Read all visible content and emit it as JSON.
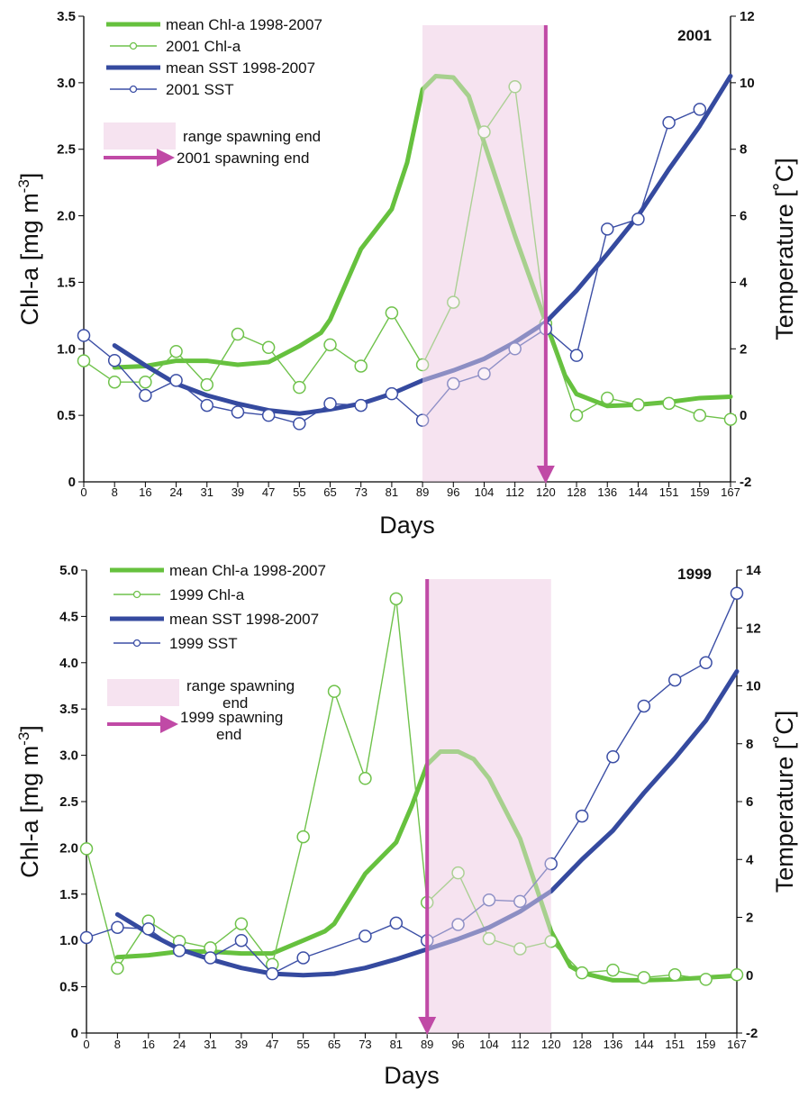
{
  "colors": {
    "green": "#66c13e",
    "green_marker": "#6fc24b",
    "blue": "#354a9f",
    "blue_marker": "#3b4ea5",
    "magenta": "#c04aa6",
    "band": "#f6e3f0"
  },
  "chart_data": [
    {
      "type": "line",
      "panel_label": "2001",
      "categories": [
        "0",
        "8",
        "16",
        "24",
        "31",
        "39",
        "47",
        "55",
        "65",
        "73",
        "81",
        "89",
        "96",
        "104",
        "112",
        "120",
        "128",
        "136",
        "144",
        "151",
        "159",
        "167"
      ],
      "xlabel": "Days",
      "ylabel_left": "Chl-a [mg m",
      "ylabel_left_sup": "-3",
      "ylabel_left_end": "]",
      "ylabel_right": "Temperature [˚C]",
      "ylim_left": [
        0,
        3.5
      ],
      "yticks_left": [
        0,
        0.5,
        1.0,
        1.5,
        2.0,
        2.5,
        3.0,
        3.5
      ],
      "ytick_labels_left": [
        "0",
        "0.5",
        "1.0",
        "1.5",
        "2.0",
        "2.5",
        "3.0",
        "3.5"
      ],
      "ylim_right": [
        -2,
        12
      ],
      "yticks_right": [
        -2,
        0,
        2,
        4,
        6,
        8,
        10,
        12
      ],
      "ytick_labels_right": [
        "-2",
        "0",
        "2",
        "4",
        "6",
        "8",
        "10",
        "12"
      ],
      "spawning_range": [
        89,
        120
      ],
      "spawning_end": 120,
      "series": [
        {
          "name": "mean Chl-a 1998-2007",
          "axis": "left",
          "style": "thick",
          "color": "green",
          "x": [
            8,
            16,
            24,
            31,
            39,
            47,
            55,
            62,
            65,
            73,
            81,
            85,
            89,
            92,
            96,
            100,
            104,
            112,
            120,
            125,
            128,
            136,
            144,
            151,
            159,
            167
          ],
          "y": [
            0.86,
            0.87,
            0.91,
            0.91,
            0.88,
            0.9,
            1.02,
            1.12,
            1.22,
            1.75,
            2.05,
            2.4,
            2.95,
            3.05,
            3.04,
            2.9,
            2.55,
            1.85,
            1.2,
            0.8,
            0.66,
            0.57,
            0.58,
            0.6,
            0.63,
            0.64
          ]
        },
        {
          "name": "2001 Chl-a",
          "axis": "left",
          "style": "marker",
          "color": "green",
          "x": [
            0,
            8,
            16,
            24,
            31,
            39,
            47,
            55,
            65,
            73,
            81,
            89,
            96,
            104,
            112,
            120,
            128,
            136,
            144,
            151,
            159,
            167
          ],
          "y": [
            0.91,
            0.75,
            0.75,
            0.98,
            0.73,
            1.11,
            1.01,
            0.71,
            1.03,
            0.87,
            1.27,
            0.88,
            1.35,
            2.63,
            2.97,
            1.19,
            0.5,
            0.63,
            0.58,
            0.59,
            0.5,
            0.47
          ]
        },
        {
          "name": "mean SST 1998-2007",
          "axis": "right",
          "style": "thick",
          "color": "blue",
          "x": [
            8,
            16,
            24,
            31,
            39,
            47,
            55,
            65,
            73,
            81,
            89,
            96,
            104,
            112,
            120,
            128,
            136,
            144,
            151,
            159,
            167
          ],
          "y": [
            2.1,
            1.5,
            0.95,
            0.6,
            0.35,
            0.15,
            0.05,
            0.18,
            0.35,
            0.65,
            1.05,
            1.35,
            1.7,
            2.2,
            2.8,
            3.75,
            4.85,
            6.0,
            7.4,
            8.7,
            10.2
          ]
        },
        {
          "name": "2001 SST",
          "axis": "right",
          "style": "marker",
          "color": "blue",
          "x": [
            0,
            8,
            16,
            24,
            31,
            39,
            47,
            55,
            65,
            73,
            81,
            89,
            96,
            104,
            112,
            120,
            128,
            136,
            144,
            151,
            159
          ],
          "y": [
            2.4,
            1.65,
            0.6,
            1.05,
            0.3,
            0.1,
            0.0,
            -0.25,
            0.35,
            0.3,
            0.65,
            -0.15,
            0.95,
            1.25,
            2.0,
            2.6,
            1.8,
            5.6,
            5.9,
            8.8,
            9.2
          ]
        }
      ],
      "legend": [
        {
          "type": "thick",
          "color": "green",
          "label": "mean Chl-a 1998-2007"
        },
        {
          "type": "marker",
          "color": "green",
          "label": "2001 Chl-a"
        },
        {
          "type": "thick",
          "color": "blue",
          "label": "mean SST 1998-2007"
        },
        {
          "type": "marker",
          "color": "blue",
          "label": "2001 SST"
        },
        {
          "type": "band",
          "color": "band",
          "label": "range spawning end"
        },
        {
          "type": "arrow",
          "color": "magenta",
          "label": "2001 spawning end"
        }
      ]
    },
    {
      "type": "line",
      "panel_label": "1999",
      "categories": [
        "0",
        "8",
        "16",
        "24",
        "31",
        "39",
        "47",
        "55",
        "65",
        "73",
        "81",
        "89",
        "96",
        "104",
        "112",
        "120",
        "128",
        "136",
        "144",
        "151",
        "159",
        "167"
      ],
      "xlabel": "Days",
      "ylabel_left": "Chl-a [mg m",
      "ylabel_left_sup": "-3",
      "ylabel_left_end": "]",
      "ylabel_right": "Temperature [˚C]",
      "ylim_left": [
        0,
        5.0
      ],
      "yticks_left": [
        0,
        0.5,
        1.0,
        1.5,
        2.0,
        2.5,
        3.0,
        3.5,
        4.0,
        4.5,
        5.0
      ],
      "ytick_labels_left": [
        "0",
        "0.5",
        "1.0",
        "1.5",
        "2.0",
        "2.5",
        "3.0",
        "3.5",
        "4.0",
        "4.5",
        "5.0"
      ],
      "ylim_right": [
        -2,
        14
      ],
      "yticks_right": [
        -2,
        0,
        2,
        4,
        6,
        8,
        10,
        12,
        14
      ],
      "ytick_labels_right": [
        "-2",
        "0",
        "2",
        "4",
        "6",
        "8",
        "10",
        "12",
        "14"
      ],
      "spawning_range": [
        89,
        120
      ],
      "spawning_end": 89,
      "series": [
        {
          "name": "mean Chl-a 1998-2007",
          "axis": "left",
          "style": "thick",
          "color": "green",
          "x": [
            8,
            16,
            24,
            31,
            39,
            47,
            55,
            62,
            65,
            73,
            81,
            85,
            89,
            92,
            96,
            100,
            104,
            112,
            120,
            125,
            128,
            136,
            144,
            151,
            159,
            167
          ],
          "y": [
            0.82,
            0.84,
            0.88,
            0.88,
            0.86,
            0.86,
            1.0,
            1.1,
            1.18,
            1.72,
            2.06,
            2.45,
            2.9,
            3.04,
            3.04,
            2.96,
            2.75,
            2.1,
            1.1,
            0.72,
            0.65,
            0.57,
            0.57,
            0.58,
            0.6,
            0.62
          ]
        },
        {
          "name": "1999 Chl-a",
          "axis": "left",
          "style": "marker",
          "color": "green",
          "x": [
            0,
            8,
            16,
            24,
            31,
            39,
            47,
            55,
            65,
            73,
            81,
            89,
            96,
            104,
            112,
            120,
            128,
            136,
            144,
            151,
            159,
            167
          ],
          "y": [
            1.99,
            0.7,
            1.21,
            0.99,
            0.92,
            1.18,
            0.74,
            2.12,
            3.69,
            2.75,
            4.69,
            1.41,
            1.73,
            1.02,
            0.91,
            0.99,
            0.65,
            0.68,
            0.6,
            0.63,
            0.58,
            0.63
          ]
        },
        {
          "name": "mean SST 1998-2007",
          "axis": "right",
          "style": "thick",
          "color": "blue",
          "x": [
            8,
            16,
            24,
            31,
            39,
            47,
            55,
            65,
            73,
            81,
            89,
            96,
            104,
            112,
            120,
            128,
            136,
            144,
            151,
            159,
            167
          ],
          "y": [
            2.1,
            1.45,
            0.9,
            0.55,
            0.25,
            0.05,
            0.0,
            0.05,
            0.25,
            0.55,
            0.9,
            1.25,
            1.65,
            2.2,
            2.9,
            4.0,
            5.0,
            6.3,
            7.5,
            8.8,
            10.5
          ]
        },
        {
          "name": "1999 SST",
          "axis": "right",
          "style": "marker",
          "color": "blue",
          "x": [
            0,
            8,
            16,
            24,
            31,
            39,
            47,
            55,
            73,
            81,
            89,
            96,
            104,
            112,
            120,
            128,
            136,
            144,
            151,
            159,
            167
          ],
          "y": [
            1.3,
            1.65,
            1.6,
            0.85,
            0.6,
            1.2,
            0.05,
            0.6,
            1.35,
            1.8,
            1.2,
            1.75,
            2.6,
            2.55,
            3.85,
            5.5,
            7.55,
            9.3,
            10.2,
            10.8,
            13.2
          ]
        }
      ],
      "legend": [
        {
          "type": "thick",
          "color": "green",
          "label": "mean Chl-a 1998-2007"
        },
        {
          "type": "marker",
          "color": "green",
          "label": "1999 Chl-a"
        },
        {
          "type": "thick",
          "color": "blue",
          "label": "mean SST 1998-2007"
        },
        {
          "type": "marker",
          "color": "blue",
          "label": "1999 SST"
        },
        {
          "type": "band",
          "color": "band",
          "label": "range spawning end",
          "lines": [
            "range spawning",
            "end"
          ]
        },
        {
          "type": "arrow",
          "color": "magenta",
          "label": "1999 spawning end",
          "lines": [
            "1999 spawning",
            "end"
          ]
        }
      ]
    }
  ]
}
